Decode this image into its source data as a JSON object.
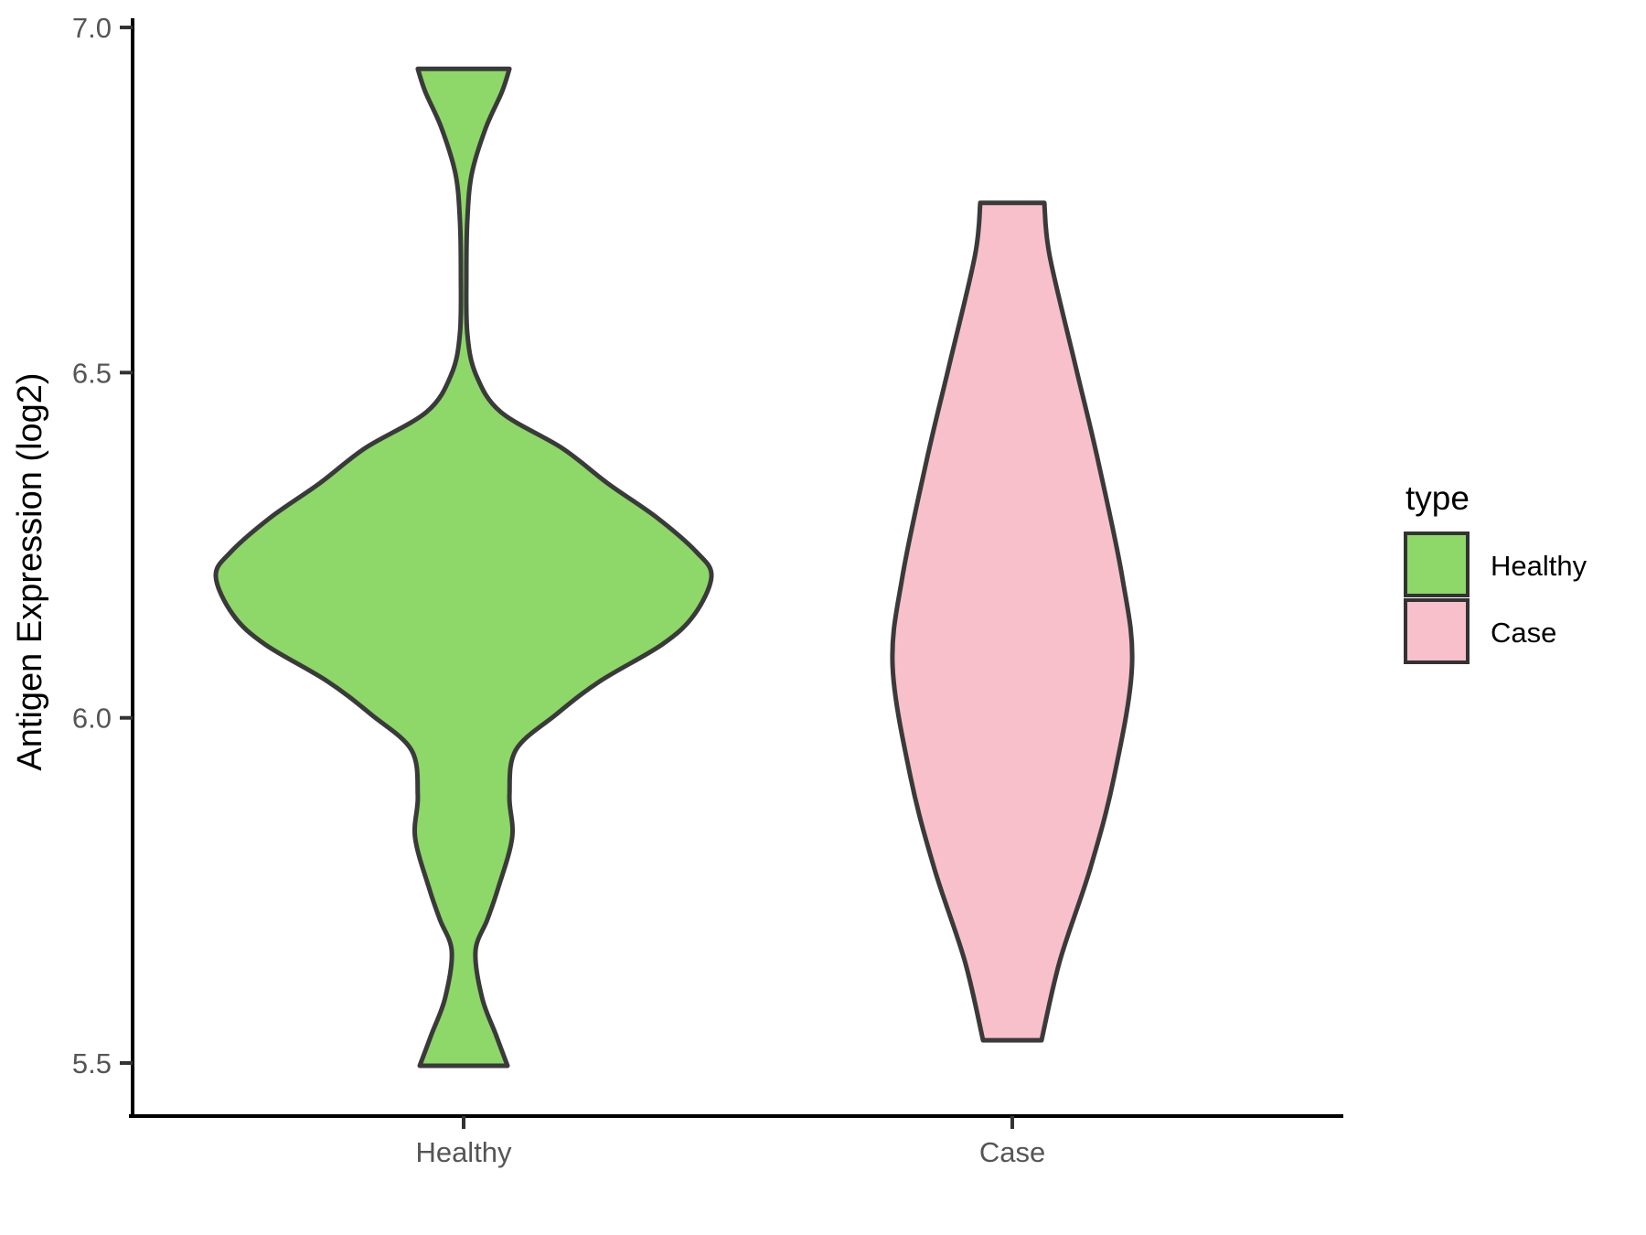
{
  "chart_data": {
    "type": "violin",
    "title": "",
    "xlabel": "",
    "ylabel": "Antigen Expression (log2)",
    "categories": [
      "Healthy",
      "Case"
    ],
    "y_ticks": [
      "5.5",
      "6.0",
      "6.5",
      "7.0"
    ],
    "y_tick_values": [
      5.5,
      6.0,
      6.5,
      7.0
    ],
    "ylim": [
      5.42,
      7.0
    ],
    "grid": "off",
    "outline_color": "#3A3A3A",
    "axis_color": "#000000",
    "tick_label_color": "#555555",
    "series": [
      {
        "name": "Healthy",
        "fill": "#8DD868",
        "profile": [
          [
            6.94,
            0.185
          ],
          [
            6.907,
            0.155
          ],
          [
            6.854,
            0.089
          ],
          [
            6.788,
            0.033
          ],
          [
            6.722,
            0.015
          ],
          [
            6.642,
            0.011
          ],
          [
            6.556,
            0.015
          ],
          [
            6.497,
            0.05
          ],
          [
            6.443,
            0.15
          ],
          [
            6.39,
            0.4
          ],
          [
            6.34,
            0.58
          ],
          [
            6.29,
            0.78
          ],
          [
            6.24,
            0.94
          ],
          [
            6.205,
            1.0
          ],
          [
            6.149,
            0.93
          ],
          [
            6.106,
            0.8
          ],
          [
            6.053,
            0.55
          ],
          [
            6.004,
            0.37
          ],
          [
            5.953,
            0.21
          ],
          [
            5.887,
            0.185
          ],
          [
            5.827,
            0.196
          ],
          [
            5.754,
            0.14
          ],
          [
            5.708,
            0.096
          ],
          [
            5.662,
            0.048
          ],
          [
            5.595,
            0.074
          ],
          [
            5.542,
            0.129
          ],
          [
            5.496,
            0.177
          ]
        ]
      },
      {
        "name": "Case",
        "fill": "#F8C0CB",
        "profile": [
          [
            6.746,
            0.129
          ],
          [
            6.669,
            0.151
          ],
          [
            6.51,
            0.255
          ],
          [
            6.377,
            0.343
          ],
          [
            6.205,
            0.443
          ],
          [
            6.075,
            0.483
          ],
          [
            5.913,
            0.41
          ],
          [
            5.781,
            0.314
          ],
          [
            5.648,
            0.192
          ],
          [
            5.533,
            0.118
          ]
        ]
      }
    ],
    "legend": {
      "title": "type",
      "position": "right",
      "entries": [
        {
          "label": "Healthy",
          "fill": "#8DD868"
        },
        {
          "label": "Case",
          "fill": "#F8C0CB"
        }
      ]
    }
  }
}
